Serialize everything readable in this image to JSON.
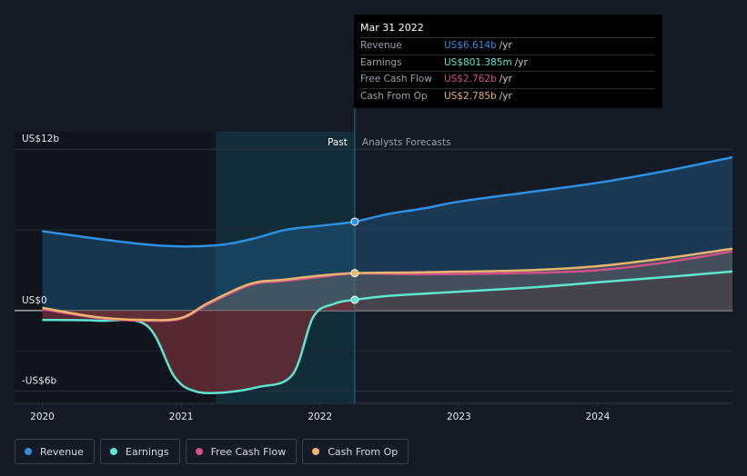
{
  "chart_data": {
    "type": "area",
    "y_ticks": [
      {
        "value": 12,
        "label": "US$12b"
      },
      {
        "value": 0,
        "label": "US$0"
      },
      {
        "value": -6,
        "label": "-US$6b"
      }
    ],
    "x_ticks": [
      {
        "value": 2020.0,
        "label": "2020"
      },
      {
        "value": 2021.0,
        "label": "2021"
      },
      {
        "value": 2022.0,
        "label": "2022"
      },
      {
        "value": 2023.0,
        "label": "2023"
      },
      {
        "value": 2024.0,
        "label": "2024"
      }
    ],
    "xlim": [
      2019.8,
      2024.97
    ],
    "ylim": [
      -6.9,
      13.3
    ],
    "past_label": "Past",
    "forecast_label": "Analysts Forecasts",
    "divider_x": 2022.25,
    "highlight_start_x": 2021.25,
    "series": [
      {
        "name": "Revenue",
        "color": "#2f8fe0",
        "points": [
          [
            2020.0,
            5.9
          ],
          [
            2020.5,
            5.2
          ],
          [
            2020.9,
            4.8
          ],
          [
            2021.25,
            4.85
          ],
          [
            2021.5,
            5.3
          ],
          [
            2021.75,
            6.0
          ],
          [
            2022.0,
            6.3
          ],
          [
            2022.25,
            6.614
          ],
          [
            2022.5,
            7.2
          ],
          [
            2022.75,
            7.6
          ],
          [
            2023.0,
            8.1
          ],
          [
            2023.5,
            8.8
          ],
          [
            2024.0,
            9.5
          ],
          [
            2024.5,
            10.4
          ],
          [
            2024.97,
            11.4
          ]
        ]
      },
      {
        "name": "Earnings",
        "color": "#5ee6d0",
        "points": [
          [
            2020.0,
            -0.7
          ],
          [
            2020.4,
            -0.75
          ],
          [
            2020.75,
            -1.1
          ],
          [
            2020.95,
            -4.9
          ],
          [
            2021.1,
            -6.0
          ],
          [
            2021.3,
            -6.1
          ],
          [
            2021.55,
            -5.7
          ],
          [
            2021.8,
            -4.8
          ],
          [
            2021.95,
            -0.5
          ],
          [
            2022.1,
            0.5
          ],
          [
            2022.25,
            0.801
          ],
          [
            2022.5,
            1.1
          ],
          [
            2023.0,
            1.4
          ],
          [
            2023.5,
            1.7
          ],
          [
            2024.0,
            2.1
          ],
          [
            2024.5,
            2.5
          ],
          [
            2024.97,
            2.9
          ]
        ]
      },
      {
        "name": "Free Cash Flow",
        "color": "#d0508a",
        "points": [
          [
            2020.0,
            0.1
          ],
          [
            2020.4,
            -0.55
          ],
          [
            2020.75,
            -0.75
          ],
          [
            2021.0,
            -0.6
          ],
          [
            2021.2,
            0.5
          ],
          [
            2021.5,
            1.9
          ],
          [
            2021.75,
            2.2
          ],
          [
            2022.0,
            2.5
          ],
          [
            2022.25,
            2.762
          ],
          [
            2022.75,
            2.7
          ],
          [
            2023.5,
            2.8
          ],
          [
            2024.0,
            3.0
          ],
          [
            2024.5,
            3.6
          ],
          [
            2024.97,
            4.4
          ]
        ]
      },
      {
        "name": "Cash From Op",
        "color": "#e9b46d",
        "points": [
          [
            2020.0,
            0.2
          ],
          [
            2020.4,
            -0.5
          ],
          [
            2020.75,
            -0.7
          ],
          [
            2021.0,
            -0.55
          ],
          [
            2021.2,
            0.6
          ],
          [
            2021.5,
            2.0
          ],
          [
            2021.75,
            2.3
          ],
          [
            2022.0,
            2.6
          ],
          [
            2022.25,
            2.785
          ],
          [
            2022.75,
            2.85
          ],
          [
            2023.5,
            3.0
          ],
          [
            2024.0,
            3.3
          ],
          [
            2024.5,
            3.9
          ],
          [
            2024.97,
            4.6
          ]
        ]
      }
    ]
  },
  "tooltip": {
    "date": "Mar 31 2022",
    "rows": [
      {
        "label": "Revenue",
        "value": "US$6.614b",
        "unit": "/yr",
        "color": "#2f8fe0"
      },
      {
        "label": "Earnings",
        "value": "US$801.385m",
        "unit": "/yr",
        "color": "#5ee6d0"
      },
      {
        "label": "Free Cash Flow",
        "value": "US$2.762b",
        "unit": "/yr",
        "color": "#d0508a"
      },
      {
        "label": "Cash From Op",
        "value": "US$2.785b",
        "unit": "/yr",
        "color": "#e9b46d"
      }
    ]
  },
  "legend": [
    {
      "label": "Revenue",
      "color": "#2f8fe0"
    },
    {
      "label": "Earnings",
      "color": "#5ee6d0"
    },
    {
      "label": "Free Cash Flow",
      "color": "#d0508a"
    },
    {
      "label": "Cash From Op",
      "color": "#e9b46d"
    }
  ]
}
